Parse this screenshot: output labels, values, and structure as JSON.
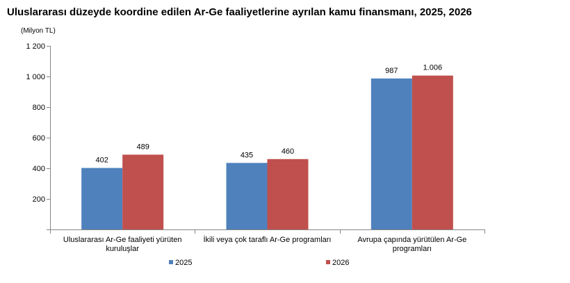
{
  "chart_data": {
    "type": "bar",
    "title": "Uluslararası düzeyde koordine edilen Ar-Ge faaliyetlerine ayrılan kamu finansmanı, 2025, 2026",
    "unit_label": "(Milyon TL)",
    "categories": [
      [
        "Uluslararası Ar-Ge faaliyeti yürüten",
        "kuruluşlar"
      ],
      [
        "İkili veya çok taraflı Ar-Ge programları"
      ],
      [
        "Avrupa çapında yürütülen Ar-Ge",
        "programları"
      ]
    ],
    "series": [
      {
        "name": "2025",
        "color": "#4f81bd",
        "values": [
          402,
          435,
          987
        ],
        "labels": [
          "402",
          "435",
          "987"
        ]
      },
      {
        "name": "2026",
        "color": "#c0504d",
        "values": [
          489,
          460,
          1006
        ],
        "labels": [
          "489",
          "460",
          "1.006"
        ]
      }
    ],
    "y_ticks": [
      {
        "value": 200,
        "label": "200"
      },
      {
        "value": 400,
        "label": "400"
      },
      {
        "value": 600,
        "label": "600"
      },
      {
        "value": 800,
        "label": "800"
      },
      {
        "value": 1000,
        "label": "1 000"
      },
      {
        "value": 1200,
        "label": "1 200"
      }
    ],
    "ylim": [
      0,
      1200
    ],
    "grid": false,
    "legend_position": "bottom"
  }
}
